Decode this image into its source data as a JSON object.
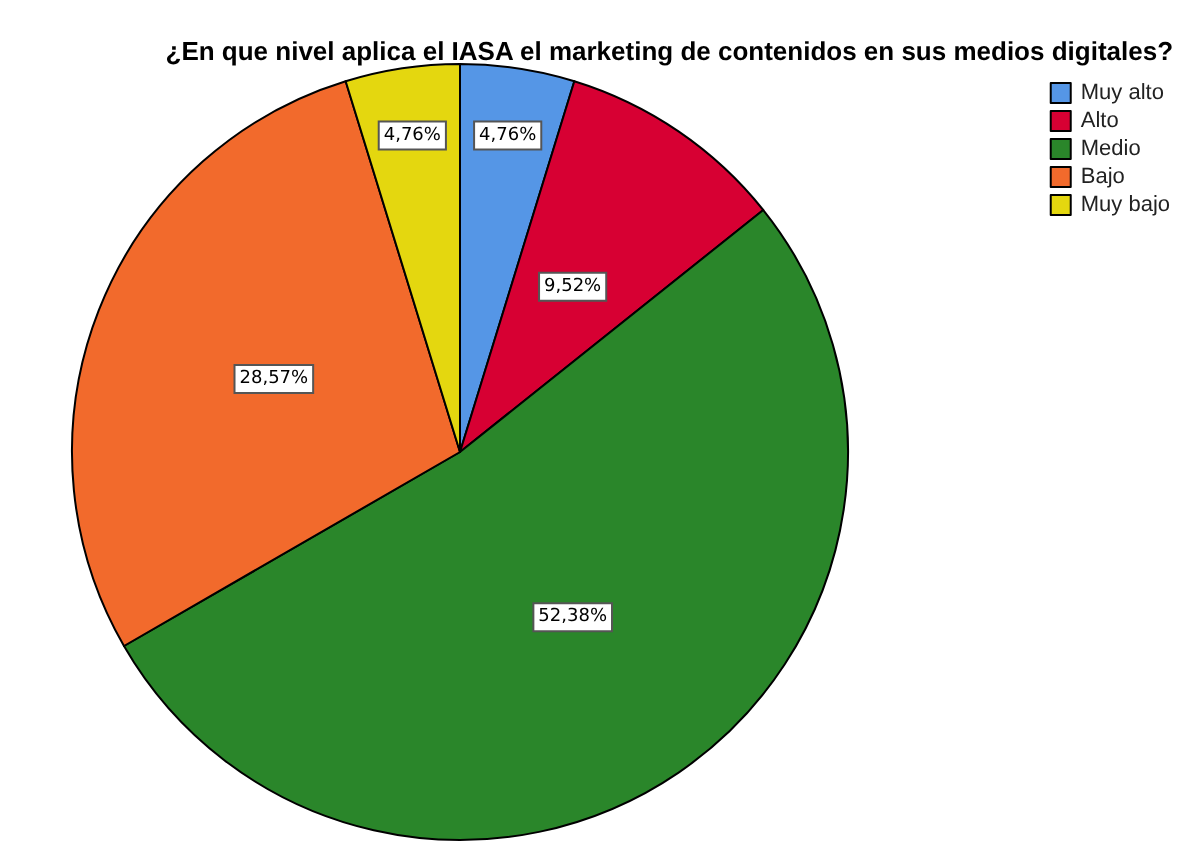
{
  "chart_data": {
    "type": "pie",
    "title": "¿En que nivel aplica el IASA el marketing de contenidos en sus medios digitales?",
    "categories": [
      "Muy alto",
      "Alto",
      "Medio",
      "Bajo",
      "Muy bajo"
    ],
    "values": [
      4.76,
      9.52,
      52.38,
      28.57,
      4.76
    ],
    "value_labels": [
      "4,76%",
      "9,52%",
      "52,38%",
      "28,57%",
      "4,76%"
    ],
    "colors": [
      "#5596e6",
      "#d70033",
      "#2a862a",
      "#f26a2c",
      "#e4d70f"
    ],
    "legend": "top right"
  }
}
